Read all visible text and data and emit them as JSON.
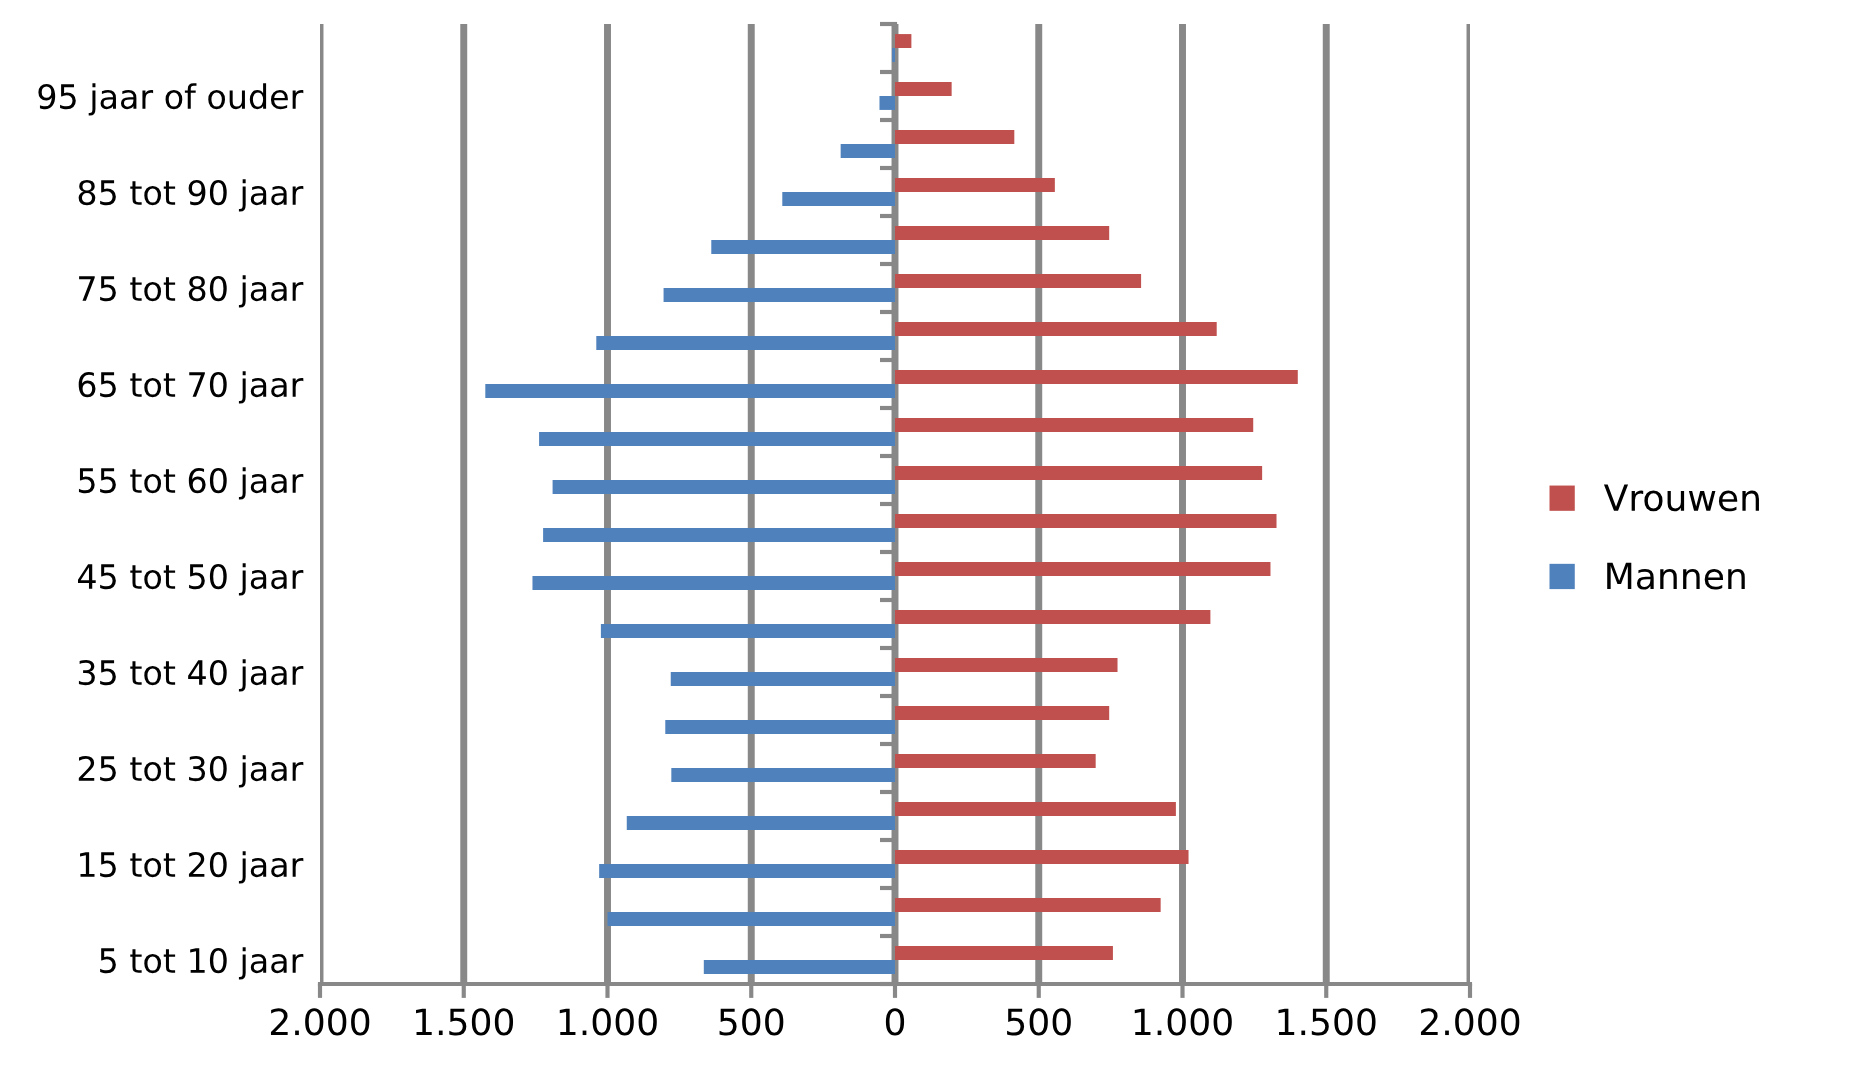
{
  "chart_data": {
    "type": "bar",
    "orientation": "horizontal",
    "categories": [
      null,
      "95 jaar of ouder",
      null,
      "85 tot 90 jaar",
      null,
      "75 tot 80 jaar",
      null,
      "65 tot 70 jaar",
      null,
      "55 tot 60 jaar",
      null,
      "45 tot 50 jaar",
      null,
      "35 tot 40 jaar",
      null,
      "25 tot 30 jaar",
      null,
      "15 tot 20 jaar",
      null,
      "5 tot 10 jaar"
    ],
    "series": [
      {
        "name": "Mannen",
        "color": "#4f81bd",
        "values": [
          -10,
          -54,
          -189,
          -392,
          -639,
          -805,
          -1039,
          -1425,
          -1238,
          -1191,
          -1224,
          -1261,
          -1023,
          -780,
          -799,
          -778,
          -933,
          -1029,
          -1000,
          -665
        ]
      },
      {
        "name": "Vrouwen",
        "color": "#c0504d",
        "values": [
          57,
          197,
          415,
          556,
          745,
          856,
          1119,
          1401,
          1246,
          1277,
          1327,
          1306,
          1097,
          774,
          745,
          698,
          977,
          1021,
          924,
          758
        ]
      }
    ],
    "xlim": [
      -2000,
      2000
    ],
    "xticks": [
      {
        "value": -2000,
        "label": "2.000"
      },
      {
        "value": -1500,
        "label": "1.500"
      },
      {
        "value": -1000,
        "label": "1.000"
      },
      {
        "value": -500,
        "label": "500"
      },
      0,
      {
        "value": 500,
        "label": "500"
      },
      {
        "value": 1000,
        "label": "1.000"
      },
      {
        "value": 1500,
        "label": "1.500"
      },
      {
        "value": 2000,
        "label": "2.000"
      }
    ],
    "grid": "x",
    "legend": "right"
  }
}
